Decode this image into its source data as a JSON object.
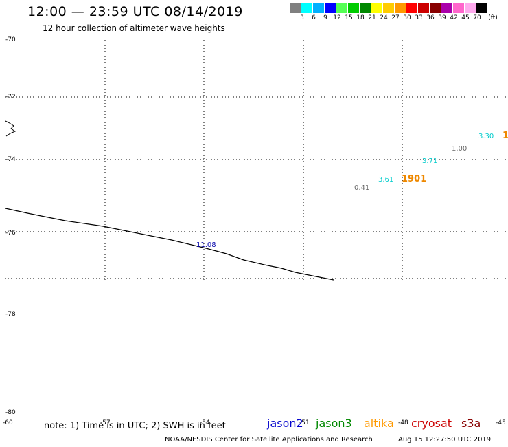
{
  "header": {
    "title": "12:00 — 23:59 UTC 08/14/2019",
    "subtitle": "12 hour collection of altimeter wave heights"
  },
  "colorbar": {
    "colors": [
      "#808080",
      "#00ffff",
      "#00b0ff",
      "#0000ff",
      "#55ff55",
      "#00cc00",
      "#008800",
      "#ffff00",
      "#ffcc00",
      "#ff9900",
      "#ff0000",
      "#cc0000",
      "#880000",
      "#aa00aa",
      "#ff66cc",
      "#ffaaee",
      "#000000"
    ],
    "labels": [
      "3",
      "6",
      "9",
      "12",
      "15",
      "18",
      "21",
      "24",
      "27",
      "30",
      "33",
      "36",
      "39",
      "42",
      "45",
      "70",
      "(ft)"
    ]
  },
  "map": {
    "lat_labels": [
      "-70",
      "-72",
      "-74",
      "-76",
      "-78",
      "-80"
    ],
    "lon_labels": [
      "-60",
      "-57",
      "-54",
      "-51",
      "-48",
      "-45"
    ],
    "swh_labels": [
      {
        "text": "11.08",
        "color": "#0000aa"
      },
      {
        "text": "3.61",
        "color": "#00cccc"
      },
      {
        "text": "0.41",
        "color": "#666666"
      },
      {
        "text": "1901",
        "color": "#ee8800"
      },
      {
        "text": "3.71",
        "color": "#00cccc"
      },
      {
        "text": "1.00",
        "color": "#666666"
      },
      {
        "text": "3.30",
        "color": "#00cccc"
      },
      {
        "text": "1",
        "color": "#ee8800"
      }
    ]
  },
  "footer": {
    "note": "note: 1) Time is in UTC; 2) SWH is in feet",
    "satellites": [
      {
        "name": "jason2",
        "color": "#0000cc"
      },
      {
        "name": "jason3",
        "color": "#008800"
      },
      {
        "name": "altika",
        "color": "#ff9900"
      },
      {
        "name": "cryosat",
        "color": "#cc0000"
      },
      {
        "name": "s3a",
        "color": "#880000"
      }
    ],
    "credit": "NOAA/NESDIS Center for Satellite Applications and Research",
    "timestamp": "Aug 15 12:27:50 UTC 2019"
  }
}
